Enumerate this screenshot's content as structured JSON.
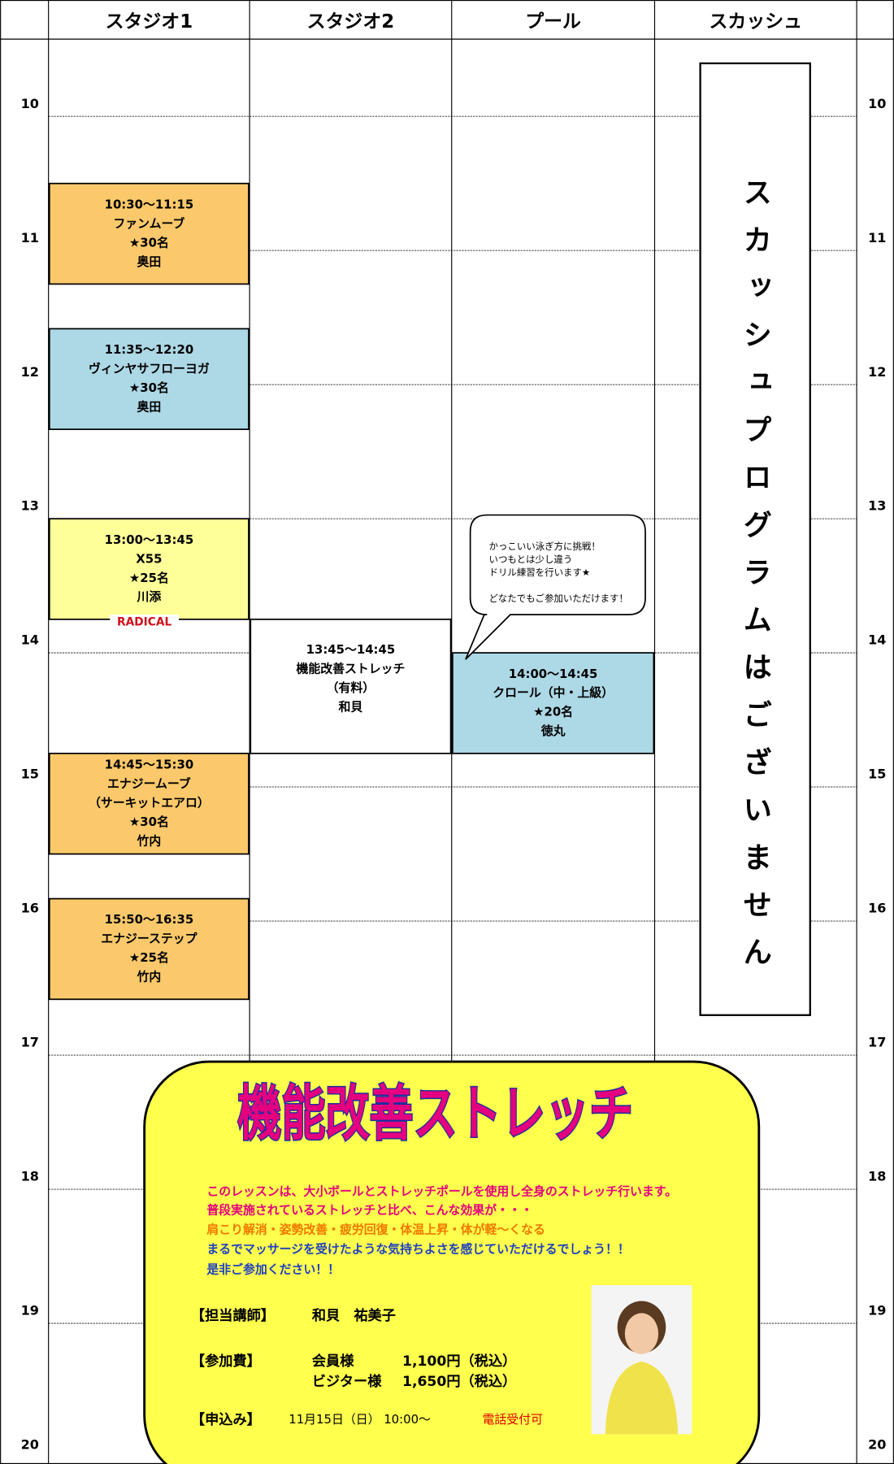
{
  "header": {
    "columns": [
      "スタジオ1",
      "スタジオ2",
      "プール",
      "スカッシュ"
    ]
  },
  "hours": [
    10,
    11,
    12,
    13,
    14,
    15,
    16,
    17,
    18,
    19,
    20
  ],
  "lessons": [
    {
      "lines": [
        "10:30～11:15",
        "ファンムーブ",
        "★30名",
        "奥田"
      ]
    },
    {
      "lines": [
        "11:35～12:20",
        "ヴィンヤサフローヨガ",
        "★30名",
        "奥田"
      ]
    },
    {
      "lines": [
        "13:00～13:45",
        "X55",
        "★25名",
        "川添"
      ],
      "logo": "RADICAL"
    },
    {
      "lines": [
        "14:45～15:30",
        "エナジームーブ",
        "（サーキットエアロ）",
        "★30名",
        "竹内"
      ]
    },
    {
      "lines": [
        "15:50～16:35",
        "エナジーステップ",
        "★25名",
        "竹内"
      ]
    },
    {
      "lines": [
        "13:45～14:45",
        "機能改善ストレッチ",
        "（有料）",
        "和貝"
      ]
    },
    {
      "lines": [
        "14:00～14:45",
        "クロール（中・上級）",
        "★20名",
        "徳丸"
      ]
    }
  ],
  "callout": {
    "lines": [
      "かっこいい泳ぎ方に挑戦！",
      "いつもとは少し違う",
      "ドリル練習を行います★",
      "どなたでもご参加いただけます！"
    ]
  },
  "squash_note": "スカッシュプログラムはございません",
  "promo": {
    "title": "機能改善ストレッチ",
    "description": [
      "このレッスンは、大小ボールとストレッチポールを使用し全身のストレッチ行います。",
      "普段実施されているストレッチと比べ、こんな効果が・・・",
      "肩こり解消・姿勢改善・疲労回復・体温上昇・体が軽～くなる",
      "まるでマッサージを受けたような気持ちよさを感じていただけるでしょう！！",
      "是非ご参加ください！！"
    ],
    "instructor": {
      "label": "【担当講師】",
      "name": "和貝　祐美子"
    },
    "fee": {
      "label": "【参加費】",
      "rows": [
        [
          "会員様",
          "1,100円（税込）"
        ],
        [
          "ビジター様",
          "1,650円（税込）"
        ]
      ]
    },
    "apply": {
      "label": "【申込み】",
      "date": "11月15日（日） 10:00～",
      "note": "電話受付可"
    }
  }
}
